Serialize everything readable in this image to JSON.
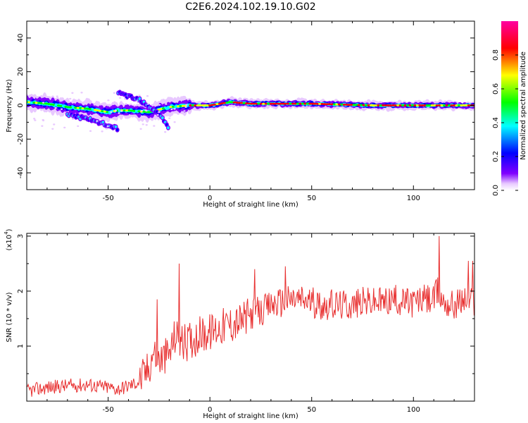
{
  "figure_title": "C2E6.2024.102.19.10.G02",
  "chart_data": [
    {
      "type": "heatmap",
      "title": "C2E6.2024.102.19.10.G02",
      "xlabel": "Height of straight line (km)",
      "ylabel": "Frequency (Hz)",
      "xlim": [
        -90,
        130
      ],
      "ylim": [
        -50,
        50
      ],
      "xticks": [
        -50,
        0,
        50,
        100
      ],
      "yticks": [
        -40,
        -20,
        0,
        20,
        40
      ],
      "colorbar": {
        "label": "Normalized spectral amplitude",
        "range": [
          0,
          1
        ],
        "ticks": [
          "0.0",
          "0.2",
          "0.4",
          "0.6",
          "0.8"
        ],
        "colormap": [
          "#ffffff",
          "#e8c8ff",
          "#8000ff",
          "#0000ff",
          "#00ffff",
          "#00ff00",
          "#ffff00",
          "#ff0000",
          "#ff00a0"
        ]
      },
      "ridge": [
        {
          "x": -90,
          "y": 2
        },
        {
          "x": -80,
          "y": 1
        },
        {
          "x": -70,
          "y": -1
        },
        {
          "x": -60,
          "y": -2
        },
        {
          "x": -50,
          "y": -4
        },
        {
          "x": -45,
          "y": -3
        },
        {
          "x": -40,
          "y": -3
        },
        {
          "x": -30,
          "y": -4
        },
        {
          "x": -20,
          "y": -1
        },
        {
          "x": -10,
          "y": 0
        },
        {
          "x": 0,
          "y": 0
        },
        {
          "x": 10,
          "y": 2
        },
        {
          "x": 20,
          "y": 1
        },
        {
          "x": 50,
          "y": 1
        },
        {
          "x": 80,
          "y": 0
        },
        {
          "x": 130,
          "y": 0
        }
      ],
      "branches": [
        {
          "x": [
            -45,
            -35,
            -25,
            -20
          ],
          "y": [
            7,
            4,
            -5,
            -14
          ]
        },
        {
          "x": [
            -70,
            -55,
            -45
          ],
          "y": [
            -5,
            -10,
            -14
          ]
        }
      ],
      "grid": false
    },
    {
      "type": "line",
      "xlabel": "Height of straight line (km)",
      "ylabel": "SNR (10 * v/v)",
      "y_multiplier": "(x10",
      "y_exponent": "4",
      "y_multiplier_close": ")",
      "xlim": [
        -90,
        130
      ],
      "ylim": [
        0,
        3.05
      ],
      "xticks": [
        -50,
        0,
        50,
        100
      ],
      "yticks": [
        1,
        2,
        3
      ],
      "series": [
        {
          "color": "#e83030",
          "x": [
            -90,
            -80,
            -70,
            -60,
            -50,
            -45,
            -40,
            -35,
            -30,
            -28,
            -25,
            -20,
            -17,
            -15,
            -12,
            -10,
            -5,
            0,
            5,
            10,
            15,
            20,
            22,
            25,
            30,
            35,
            40,
            45,
            50,
            55,
            60,
            65,
            70,
            75,
            80,
            85,
            90,
            95,
            100,
            105,
            110,
            112,
            115,
            120,
            125,
            130
          ],
          "values": [
            0.18,
            0.25,
            0.28,
            0.3,
            0.25,
            0.22,
            0.28,
            0.35,
            0.6,
            0.9,
            0.75,
            0.85,
            1.2,
            1.1,
            1.05,
            1.1,
            1.2,
            1.25,
            1.35,
            1.4,
            1.45,
            1.55,
            1.65,
            1.6,
            1.75,
            1.8,
            1.85,
            1.85,
            1.8,
            1.75,
            1.75,
            1.75,
            1.75,
            1.8,
            1.8,
            1.8,
            1.85,
            1.8,
            1.8,
            1.85,
            1.85,
            2.0,
            1.8,
            1.75,
            1.85,
            1.8
          ],
          "spikes": [
            {
              "x": -15,
              "y": 2.5
            },
            {
              "x": -26,
              "y": 1.85
            },
            {
              "x": 22,
              "y": 2.4
            },
            {
              "x": 37,
              "y": 2.45
            },
            {
              "x": 112.5,
              "y": 3.0
            },
            {
              "x": 127,
              "y": 2.55
            },
            {
              "x": 129,
              "y": 2.55
            }
          ]
        }
      ],
      "grid": false
    }
  ]
}
